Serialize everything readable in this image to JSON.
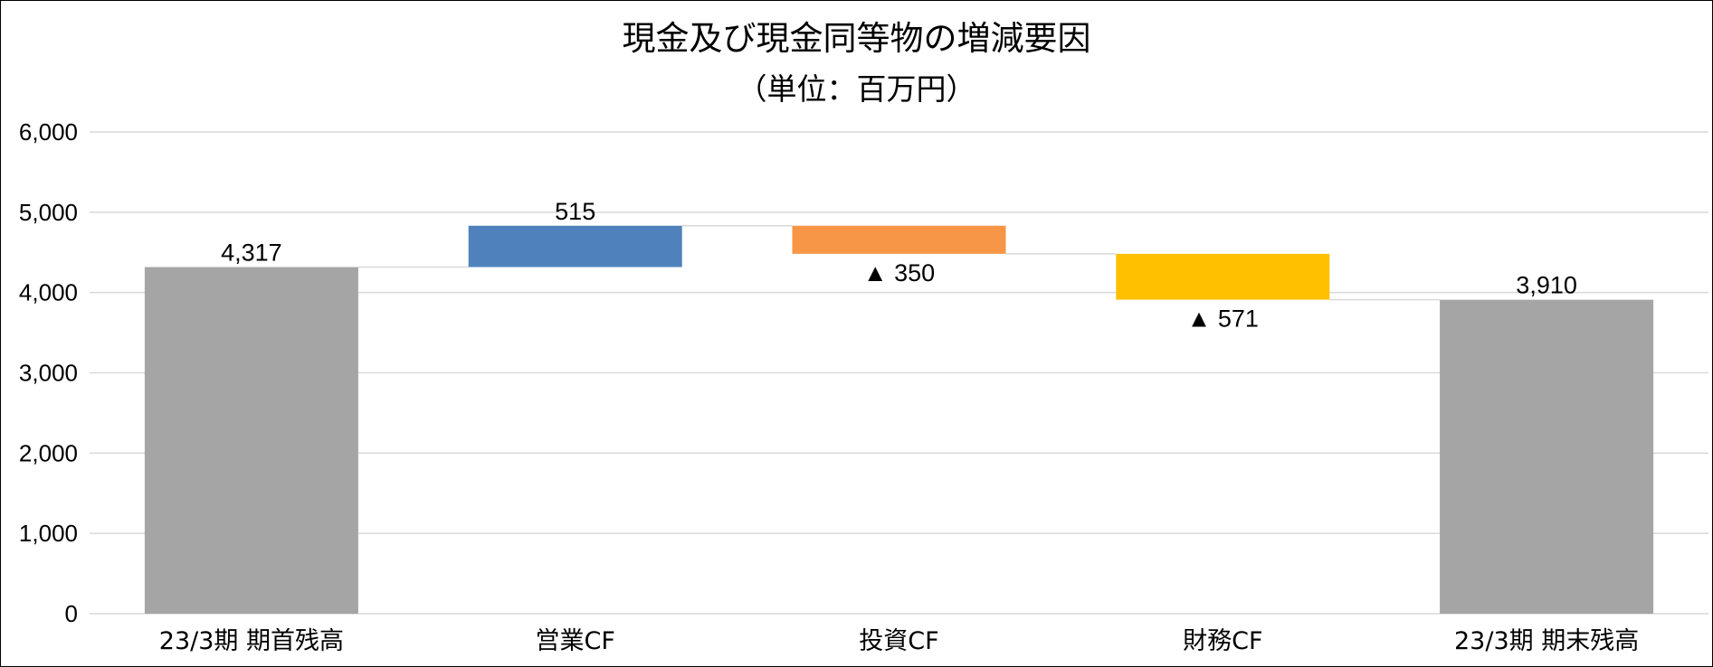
{
  "chart_data": {
    "type": "waterfall",
    "title": "現金及び現金同等物の増減要因",
    "subtitle": "（単位：百万円）",
    "categories": [
      "23/3期 期首残高",
      "営業CF",
      "投資CF",
      "財務CF",
      "23/3期 期末残高"
    ],
    "steps": [
      {
        "category": "23/3期 期首残高",
        "kind": "total",
        "value": 4317,
        "label": "4,317",
        "color": "#a5a5a5"
      },
      {
        "category": "営業CF",
        "kind": "increase",
        "value": 515,
        "label": "515",
        "color": "#4f81bd"
      },
      {
        "category": "投資CF",
        "kind": "decrease",
        "value": -350,
        "label": "▲ 350",
        "color": "#f79646"
      },
      {
        "category": "財務CF",
        "kind": "decrease",
        "value": -571,
        "label": "▲ 571",
        "color": "#ffc000"
      },
      {
        "category": "23/3期 期末残高",
        "kind": "total",
        "value": 3910,
        "label": "3,910",
        "color": "#a5a5a5"
      }
    ],
    "ylim": [
      0,
      6000
    ],
    "yticks": [
      0,
      1000,
      2000,
      3000,
      4000,
      5000,
      6000
    ],
    "ytick_labels": [
      "0",
      "1,000",
      "2,000",
      "3,000",
      "4,000",
      "5,000",
      "6,000"
    ],
    "grid": true,
    "legend": "none",
    "colors": {
      "total": "#a5a5a5",
      "gridline": "#d9d9d9",
      "connector": "#d9d9d9"
    }
  }
}
